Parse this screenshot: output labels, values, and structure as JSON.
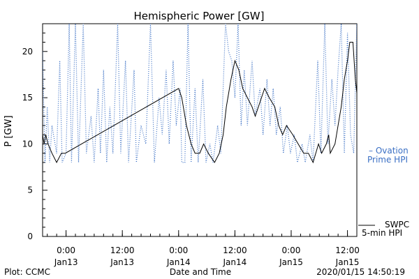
{
  "chart_data": {
    "type": "line",
    "title": "Hemispheric Power [GW]",
    "ylabel": "P [GW]",
    "xlabel": "Date and Time",
    "ylim": [
      0,
      23
    ],
    "y_ticks": [
      0,
      5,
      10,
      15,
      20
    ],
    "xlim": [
      "2020-01-12 19:00",
      "2020-01-15 14:00"
    ],
    "x_ticks": [
      {
        "time": "2020-01-13 00:00",
        "line1": "0:00",
        "line2": "Jan13"
      },
      {
        "time": "2020-01-13 12:00",
        "line1": "12:00",
        "line2": "Jan13"
      },
      {
        "time": "2020-01-14 00:00",
        "line1": "0:00",
        "line2": "Jan14"
      },
      {
        "time": "2020-01-14 12:00",
        "line1": "12:00",
        "line2": "Jan14"
      },
      {
        "time": "2020-01-15 00:00",
        "line1": "0:00",
        "line2": "Jan15"
      },
      {
        "time": "2020-01-15 12:00",
        "line1": "12:00",
        "line2": "Jan15"
      }
    ],
    "series": [
      {
        "name": "SWPC 5-min HPI",
        "legend_lines": [
          "SWPC",
          "5-min HPI"
        ],
        "color": "#000000",
        "style": "solid",
        "points": [
          [
            "2020-01-12 19:00",
            11
          ],
          [
            "2020-01-12 19:20",
            10
          ],
          [
            "2020-01-12 19:40",
            11
          ],
          [
            "2020-01-12 20:10",
            10
          ],
          [
            "2020-01-12 21:00",
            9
          ],
          [
            "2020-01-12 22:00",
            8
          ],
          [
            "2020-01-12 23:00",
            9
          ],
          [
            "2020-01-12 23:50",
            9
          ],
          [
            "2020-01-14 00:00",
            16
          ],
          [
            "2020-01-14 00:40",
            15
          ],
          [
            "2020-01-14 01:40",
            12
          ],
          [
            "2020-01-14 02:40",
            10
          ],
          [
            "2020-01-14 03:30",
            9
          ],
          [
            "2020-01-14 04:30",
            9
          ],
          [
            "2020-01-14 05:20",
            10
          ],
          [
            "2020-01-14 06:20",
            9
          ],
          [
            "2020-01-14 07:40",
            8
          ],
          [
            "2020-01-14 08:40",
            9
          ],
          [
            "2020-01-14 09:30",
            11
          ],
          [
            "2020-01-14 10:10",
            14
          ],
          [
            "2020-01-14 11:10",
            17
          ],
          [
            "2020-01-14 12:00",
            19
          ],
          [
            "2020-01-14 12:50",
            18
          ],
          [
            "2020-01-14 13:40",
            16
          ],
          [
            "2020-01-14 14:40",
            15
          ],
          [
            "2020-01-14 15:40",
            14
          ],
          [
            "2020-01-14 16:20",
            13
          ],
          [
            "2020-01-14 17:00",
            14
          ],
          [
            "2020-01-14 17:40",
            15
          ],
          [
            "2020-01-14 18:20",
            16
          ],
          [
            "2020-01-14 19:20",
            15
          ],
          [
            "2020-01-14 20:30",
            14
          ],
          [
            "2020-01-14 21:20",
            12
          ],
          [
            "2020-01-14 22:10",
            11
          ],
          [
            "2020-01-14 23:00",
            12
          ],
          [
            "2020-01-15 00:20",
            11
          ],
          [
            "2020-01-15 01:30",
            10
          ],
          [
            "2020-01-15 02:40",
            9
          ],
          [
            "2020-01-15 03:40",
            9
          ],
          [
            "2020-01-15 04:40",
            8
          ],
          [
            "2020-01-15 05:50",
            10
          ],
          [
            "2020-01-15 06:30",
            9
          ],
          [
            "2020-01-15 07:30",
            10
          ],
          [
            "2020-01-15 08:00",
            11
          ],
          [
            "2020-01-15 08:20",
            9
          ],
          [
            "2020-01-15 09:20",
            10
          ],
          [
            "2020-01-15 10:00",
            12
          ],
          [
            "2020-01-15 10:40",
            14
          ],
          [
            "2020-01-15 11:20",
            17
          ],
          [
            "2020-01-15 12:00",
            19
          ],
          [
            "2020-01-15 12:30",
            21
          ],
          [
            "2020-01-15 13:10",
            21
          ],
          [
            "2020-01-15 13:40",
            17
          ],
          [
            "2020-01-15 14:20",
            14
          ],
          [
            "2020-01-15 15:00",
            12
          ],
          [
            "2020-01-15 15:40",
            10
          ],
          [
            "2020-01-15 16:20",
            12
          ],
          [
            "2020-01-15 16:50",
            11
          ],
          [
            "2020-01-15 17:20",
            12.5
          ]
        ]
      },
      {
        "name": "Ovation Prime HPI",
        "legend_lines": [
          "– Ovation",
          "Prime HPI"
        ],
        "color": "#3a6fc4",
        "style": "dotted",
        "points": [
          [
            "2020-01-12 19:00",
            20
          ],
          [
            "2020-01-12 19:30",
            8
          ],
          [
            "2020-01-12 20:00",
            14
          ],
          [
            "2020-01-12 20:30",
            8
          ],
          [
            "2020-01-12 21:00",
            12
          ],
          [
            "2020-01-12 22:00",
            9
          ],
          [
            "2020-01-12 22:40",
            19
          ],
          [
            "2020-01-12 23:10",
            8
          ],
          [
            "2020-01-13 00:00",
            9
          ],
          [
            "2020-01-13 00:40",
            23
          ],
          [
            "2020-01-13 01:10",
            8
          ],
          [
            "2020-01-13 02:00",
            23
          ],
          [
            "2020-01-13 02:40",
            8
          ],
          [
            "2020-01-13 03:40",
            23
          ],
          [
            "2020-01-13 04:20",
            9
          ],
          [
            "2020-01-13 05:20",
            13
          ],
          [
            "2020-01-13 06:00",
            8
          ],
          [
            "2020-01-13 06:50",
            16
          ],
          [
            "2020-01-13 07:20",
            9
          ],
          [
            "2020-01-13 08:00",
            18
          ],
          [
            "2020-01-13 08:40",
            8
          ],
          [
            "2020-01-13 09:20",
            14
          ],
          [
            "2020-01-13 10:00",
            9
          ],
          [
            "2020-01-13 11:00",
            23
          ],
          [
            "2020-01-13 11:40",
            9
          ],
          [
            "2020-01-13 12:40",
            19
          ],
          [
            "2020-01-13 13:20",
            8
          ],
          [
            "2020-01-13 14:30",
            18
          ],
          [
            "2020-01-13 15:00",
            8
          ],
          [
            "2020-01-13 16:00",
            12
          ],
          [
            "2020-01-13 17:00",
            10
          ],
          [
            "2020-01-13 18:00",
            23
          ],
          [
            "2020-01-13 18:50",
            8
          ],
          [
            "2020-01-13 19:50",
            15
          ],
          [
            "2020-01-13 20:30",
            11
          ],
          [
            "2020-01-13 21:20",
            18
          ],
          [
            "2020-01-13 22:00",
            10
          ],
          [
            "2020-01-13 22:50",
            19
          ],
          [
            "2020-01-13 23:30",
            12
          ],
          [
            "2020-01-14 00:20",
            16
          ],
          [
            "2020-01-14 00:40",
            8
          ],
          [
            "2020-01-14 01:20",
            8
          ],
          [
            "2020-01-14 02:00",
            23
          ],
          [
            "2020-01-14 02:40",
            8
          ],
          [
            "2020-01-14 03:30",
            16
          ],
          [
            "2020-01-14 04:10",
            8
          ],
          [
            "2020-01-14 05:10",
            17
          ],
          [
            "2020-01-14 05:50",
            8
          ],
          [
            "2020-01-14 06:40",
            10
          ],
          [
            "2020-01-14 07:20",
            8
          ],
          [
            "2020-01-14 08:20",
            12
          ],
          [
            "2020-01-14 09:00",
            9
          ],
          [
            "2020-01-14 10:00",
            23
          ],
          [
            "2020-01-14 10:40",
            20
          ],
          [
            "2020-01-14 11:20",
            19
          ],
          [
            "2020-01-14 12:00",
            15
          ],
          [
            "2020-01-14 12:40",
            23
          ],
          [
            "2020-01-14 13:20",
            12
          ],
          [
            "2020-01-14 14:00",
            18
          ],
          [
            "2020-01-14 14:40",
            12
          ],
          [
            "2020-01-14 15:40",
            19
          ],
          [
            "2020-01-14 16:20",
            13
          ],
          [
            "2020-01-14 17:20",
            16
          ],
          [
            "2020-01-14 18:00",
            11
          ],
          [
            "2020-01-14 18:50",
            17
          ],
          [
            "2020-01-14 19:30",
            12
          ],
          [
            "2020-01-14 20:10",
            16
          ],
          [
            "2020-01-14 20:50",
            11
          ],
          [
            "2020-01-14 21:40",
            14
          ],
          [
            "2020-01-14 22:20",
            9
          ],
          [
            "2020-01-14 23:10",
            12
          ],
          [
            "2020-01-14 23:50",
            9
          ],
          [
            "2020-01-15 00:40",
            11
          ],
          [
            "2020-01-15 01:20",
            8
          ],
          [
            "2020-01-15 02:20",
            10
          ],
          [
            "2020-01-15 03:00",
            8
          ],
          [
            "2020-01-15 04:00",
            11
          ],
          [
            "2020-01-15 04:40",
            8
          ],
          [
            "2020-01-15 05:40",
            19
          ],
          [
            "2020-01-15 06:20",
            9
          ],
          [
            "2020-01-15 07:10",
            23
          ],
          [
            "2020-01-15 07:50",
            10
          ],
          [
            "2020-01-15 08:40",
            17
          ],
          [
            "2020-01-15 09:20",
            12
          ],
          [
            "2020-01-15 10:00",
            18
          ],
          [
            "2020-01-15 10:40",
            23
          ],
          [
            "2020-01-15 11:20",
            9
          ],
          [
            "2020-01-15 12:00",
            22
          ],
          [
            "2020-01-15 12:40",
            11
          ],
          [
            "2020-01-15 13:20",
            9
          ],
          [
            "2020-01-15 14:00",
            23
          ],
          [
            "2020-01-15 14:40",
            10
          ],
          [
            "2020-01-15 15:20",
            23
          ],
          [
            "2020-01-15 16:00",
            18
          ],
          [
            "2020-01-15 16:40",
            22
          ],
          [
            "2020-01-15 17:20",
            15
          ]
        ]
      }
    ]
  },
  "footer": {
    "plot_credit": "Plot: CCMC",
    "timestamp": "2020/01/15 14:50:19"
  }
}
